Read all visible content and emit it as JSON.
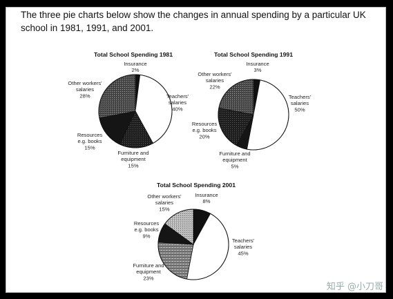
{
  "intro_text": "The three pie charts below show the changes in annual spending by a particular UK school in 1981, 1991, and 2001.",
  "watermark": "知乎 @小刀哥",
  "chart_data": [
    {
      "type": "pie",
      "title": "Total School Spending 1981",
      "slices": [
        {
          "label": "Insurance",
          "value": 2
        },
        {
          "label": "Teachers' salaries",
          "value": 40
        },
        {
          "label": "Furniture and equipment",
          "value": 15
        },
        {
          "label": "Resources e.g. books",
          "value": 15
        },
        {
          "label": "Other workers' salaries",
          "value": 28
        }
      ]
    },
    {
      "type": "pie",
      "title": "Total School Spending 1991",
      "slices": [
        {
          "label": "Insurance",
          "value": 3
        },
        {
          "label": "Teachers' salaries",
          "value": 50
        },
        {
          "label": "Furniture and equipment",
          "value": 5
        },
        {
          "label": "Resources e.g. books",
          "value": 20
        },
        {
          "label": "Other workers' salaries",
          "value": 22
        }
      ]
    },
    {
      "type": "pie",
      "title": "Total School Spending 2001",
      "slices": [
        {
          "label": "Insurance",
          "value": 8
        },
        {
          "label": "Teachers' salaries",
          "value": 45
        },
        {
          "label": "Furniture and equipment",
          "value": 23
        },
        {
          "label": "Resources e.g. books",
          "value": 9
        },
        {
          "label": "Other workers' salaries",
          "value": 15
        }
      ]
    }
  ]
}
